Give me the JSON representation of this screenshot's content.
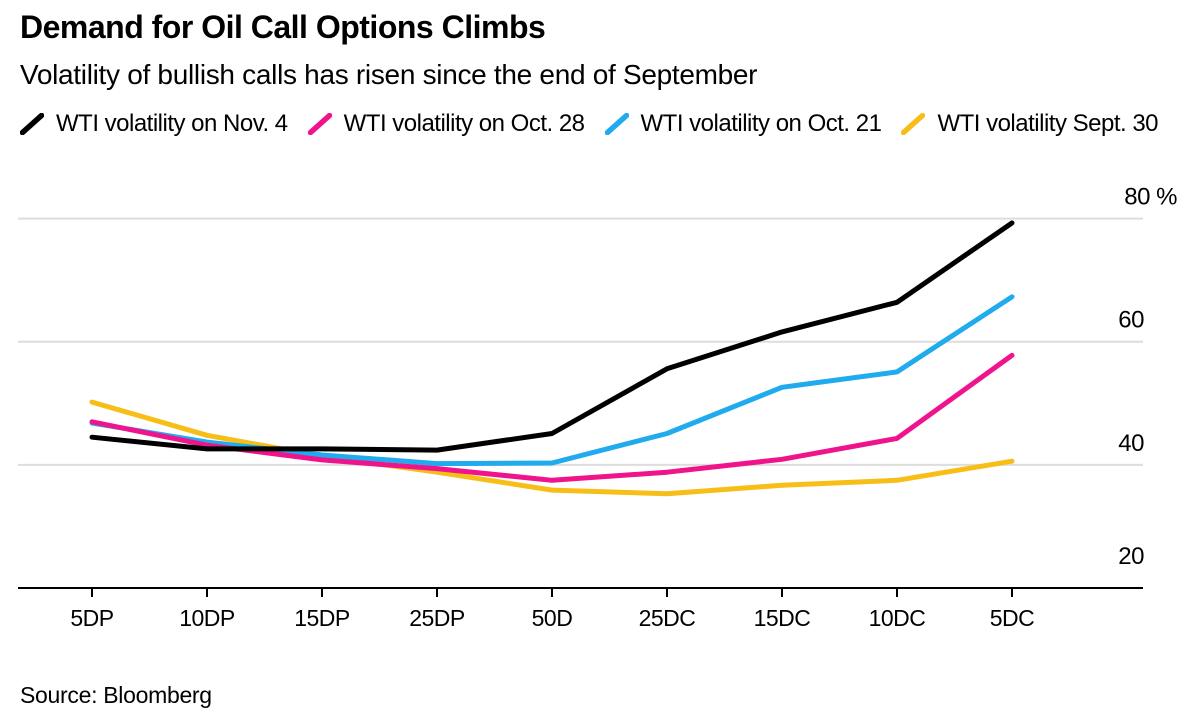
{
  "header": {
    "title": "Demand for Oil Call Options Climbs",
    "subtitle": "Volatility of bullish calls has risen since the end of September"
  },
  "chart_data": {
    "type": "line",
    "categories": [
      "5DP",
      "10DP",
      "15DP",
      "25DP",
      "50D",
      "25DC",
      "15DC",
      "10DC",
      "5DC"
    ],
    "series": [
      {
        "name": "WTI volatility on Nov. 4",
        "color": "#000000",
        "values": [
          44.5,
          42.6,
          42.6,
          42.4,
          45.1,
          55.6,
          61.6,
          66.4,
          79.3
        ]
      },
      {
        "name": "WTI volatility on Oct. 28",
        "color": "#f0148c",
        "values": [
          47.0,
          43.2,
          40.8,
          39.4,
          37.5,
          38.8,
          40.9,
          44.3,
          57.8
        ]
      },
      {
        "name": "WTI volatility on Oct. 21",
        "color": "#1fabee",
        "values": [
          46.8,
          43.7,
          41.6,
          40.2,
          40.3,
          45.1,
          52.6,
          55.1,
          67.3
        ]
      },
      {
        "name": "WTI volatility Sept. 30",
        "color": "#f6be17",
        "values": [
          50.2,
          44.8,
          41.4,
          38.8,
          35.9,
          35.3,
          36.7,
          37.5,
          40.6
        ]
      }
    ],
    "unit": "%",
    "yticks": [
      20,
      40,
      60,
      80
    ],
    "ytick_labels": [
      "20",
      "40",
      "60",
      "80 %"
    ],
    "ylim": [
      20,
      82
    ],
    "grid": "horizontal-light",
    "grid_color": "#dddddd",
    "axis_color": "#000000",
    "legend_position": "top-left"
  },
  "source": {
    "text": "Source: Bloomberg"
  }
}
